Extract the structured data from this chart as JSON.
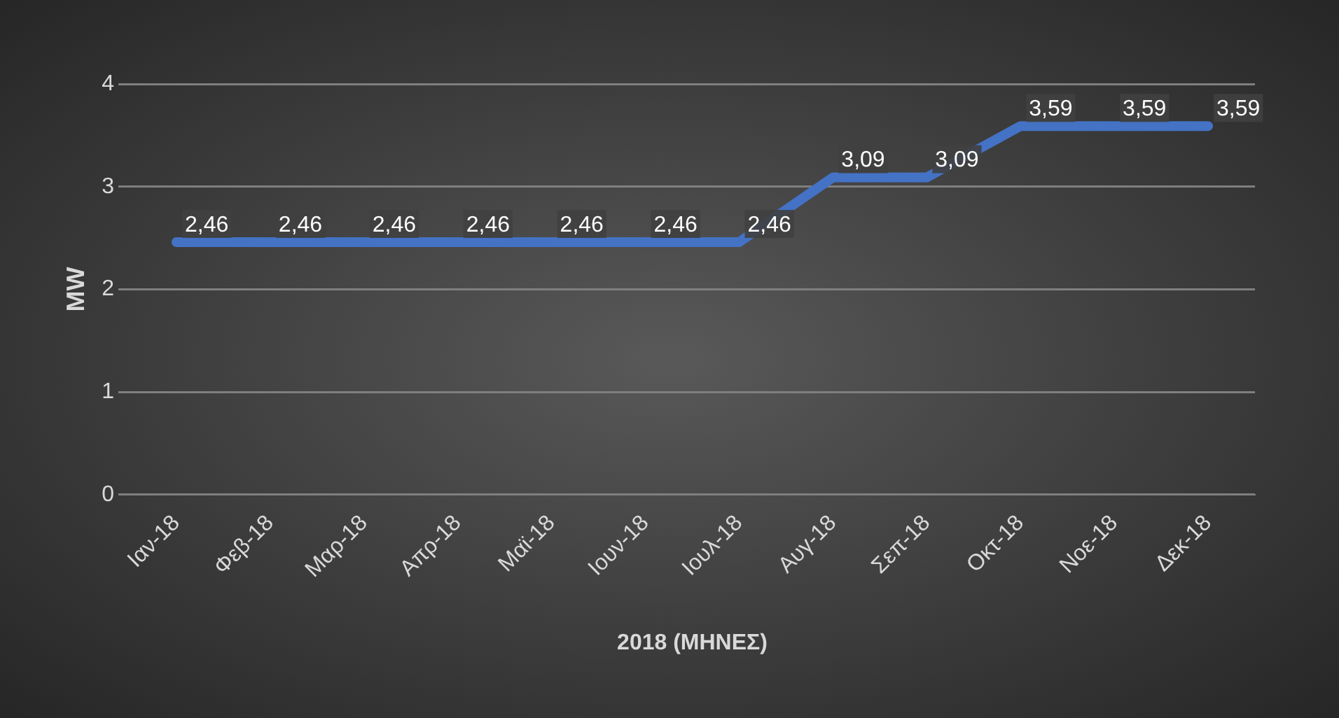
{
  "chart_data": {
    "type": "line",
    "xlabel": "2018 (ΜΗΝΕΣ)",
    "ylabel": "MW",
    "categories": [
      "Ιαν-18",
      "Φεβ-18",
      "Μαρ-18",
      "Απρ-18",
      "Μαϊ-18",
      "Ιουν-18",
      "Ιουλ-18",
      "Αυγ-18",
      "Σεπ-18",
      "Οκτ-18",
      "Νοε-18",
      "Δεκ-18"
    ],
    "series": [
      {
        "color": "#4472c4",
        "values": [
          2.46,
          2.46,
          2.46,
          2.46,
          2.46,
          2.46,
          2.46,
          3.09,
          3.09,
          3.59,
          3.59,
          3.59
        ],
        "value_labels": [
          "2,46",
          "2,46",
          "2,46",
          "2,46",
          "2,46",
          "2,46",
          "2,46",
          "3,09",
          "3,09",
          "3,59",
          "3,59",
          "3,59"
        ]
      }
    ],
    "ylim": [
      0,
      4
    ],
    "yticks": [
      0,
      1,
      2,
      3,
      4
    ],
    "grid": "y",
    "legend": false,
    "marker": "none",
    "line_style": "solid"
  }
}
